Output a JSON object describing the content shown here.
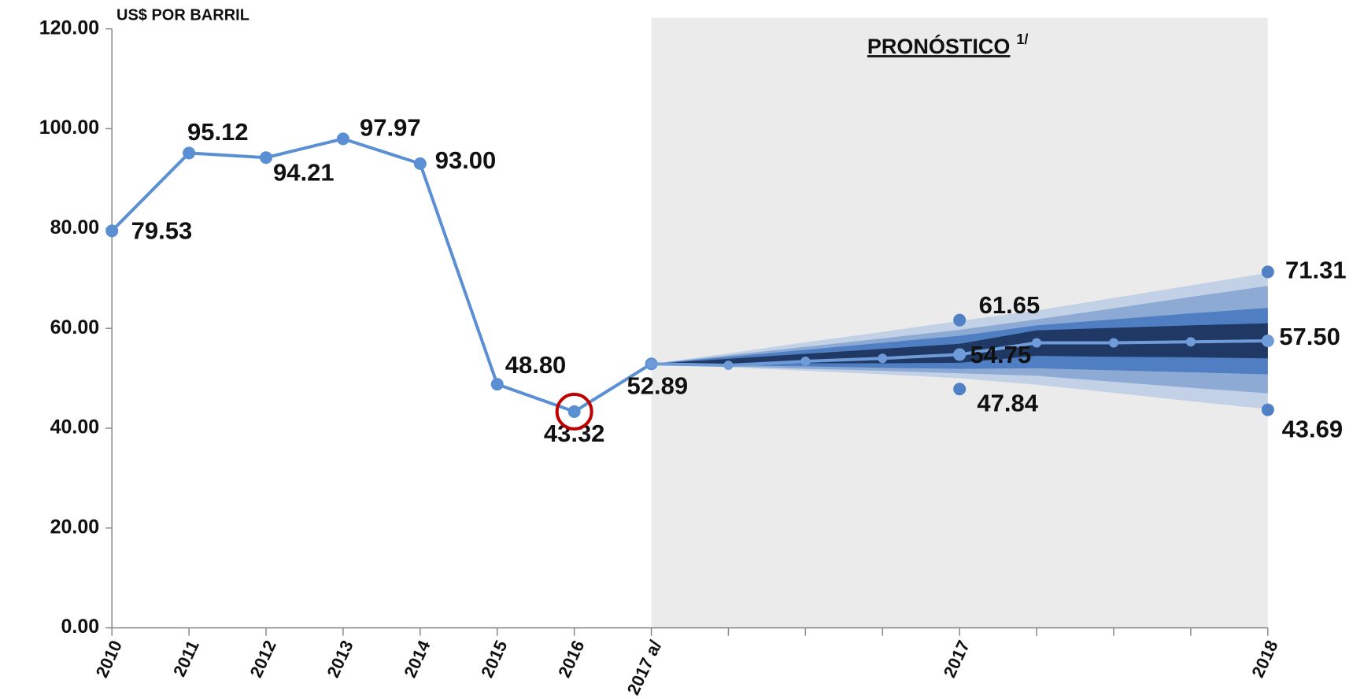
{
  "chart_data": {
    "type": "line",
    "y_axis_label": "US$ POR BARRIL",
    "annotation": {
      "text": "PRONÓSTICO",
      "note": "1/"
    },
    "highlight": {
      "category": "2016",
      "color": "#c00000"
    },
    "shade_color": "#ebebeb",
    "categories": [
      "2010",
      "2011",
      "2012",
      "2013",
      "2014",
      "2015",
      "2016",
      "2017 a/",
      null,
      null,
      null,
      "2017",
      null,
      null,
      null,
      "2018"
    ],
    "ylim": [
      0,
      120
    ],
    "yticks": [
      {
        "value": 0,
        "label": "0.00"
      },
      {
        "value": 20,
        "label": "20.00"
      },
      {
        "value": 40,
        "label": "40.00"
      },
      {
        "value": 60,
        "label": "60.00"
      },
      {
        "value": 80,
        "label": "80.00"
      },
      {
        "value": 100,
        "label": "100.00"
      },
      {
        "value": 120,
        "label": "120.00"
      }
    ],
    "bands": [
      {
        "color": "#c3d1e6",
        "upper": [
          null,
          null,
          null,
          null,
          null,
          null,
          null,
          52.89,
          55.0,
          57.2,
          59.3,
          61.5,
          63.6,
          66.1,
          68.6,
          71.1
        ],
        "lower": [
          null,
          null,
          null,
          null,
          null,
          null,
          null,
          52.89,
          52.2,
          51.5,
          50.8,
          50.0,
          48.7,
          47.1,
          45.4,
          43.8
        ]
      },
      {
        "color": "#8daad4",
        "upper": [
          null,
          null,
          null,
          null,
          null,
          null,
          null,
          52.89,
          54.6,
          56.3,
          58.0,
          59.7,
          61.8,
          64.0,
          66.3,
          68.5
        ],
        "lower": [
          null,
          null,
          null,
          null,
          null,
          null,
          null,
          52.89,
          52.4,
          51.9,
          51.5,
          51.0,
          50.5,
          49.3,
          48.1,
          47.0
        ]
      },
      {
        "color": "#4f7ec2",
        "upper": [
          null,
          null,
          null,
          null,
          null,
          null,
          null,
          52.89,
          54.3,
          55.7,
          57.1,
          58.5,
          60.6,
          61.8,
          63.0,
          64.1
        ],
        "lower": [
          null,
          null,
          null,
          null,
          null,
          null,
          null,
          52.89,
          52.6,
          52.4,
          52.1,
          51.9,
          52.0,
          51.6,
          51.2,
          50.8
        ]
      },
      {
        "color": "#203864",
        "upper": [
          null,
          null,
          null,
          null,
          null,
          null,
          null,
          52.89,
          53.9,
          54.9,
          55.9,
          56.9,
          59.6,
          60.1,
          60.6,
          61.0
        ],
        "lower": [
          null,
          null,
          null,
          null,
          null,
          null,
          null,
          52.89,
          52.9,
          53.0,
          53.0,
          53.1,
          54.5,
          54.3,
          54.2,
          54.0
        ]
      }
    ],
    "series": [
      {
        "color": "#5b8fd4",
        "line": true,
        "values": [
          79.53,
          95.12,
          94.21,
          97.97,
          93.0,
          48.8,
          43.32,
          52.89,
          null,
          null,
          null,
          null,
          null,
          null,
          null,
          null
        ],
        "value_labels": [
          "79.53",
          "95.12",
          "94.21",
          "97.97",
          "93.00",
          "48.80",
          "43.32",
          "52.89",
          null,
          null,
          null,
          null,
          null,
          null,
          null,
          null
        ]
      },
      {
        "color": "#6f9cd8",
        "line": true,
        "values": [
          null,
          null,
          null,
          null,
          null,
          null,
          null,
          52.89,
          52.6,
          53.4,
          54.0,
          54.75,
          57.1,
          57.1,
          57.3,
          57.5
        ],
        "value_labels": [
          null,
          null,
          null,
          null,
          null,
          null,
          null,
          null,
          null,
          null,
          null,
          "54.75",
          null,
          null,
          null,
          "57.50"
        ]
      },
      {
        "color": "#4f81c4",
        "line": false,
        "values": [
          null,
          null,
          null,
          null,
          null,
          null,
          null,
          null,
          null,
          null,
          null,
          61.65,
          null,
          null,
          null,
          71.31
        ],
        "value_labels": [
          null,
          null,
          null,
          null,
          null,
          null,
          null,
          null,
          null,
          null,
          null,
          "61.65",
          null,
          null,
          null,
          "71.31"
        ]
      },
      {
        "color": "#4f81c4",
        "line": false,
        "values": [
          null,
          null,
          null,
          null,
          null,
          null,
          null,
          null,
          null,
          null,
          null,
          47.84,
          null,
          null,
          null,
          43.69
        ],
        "value_labels": [
          null,
          null,
          null,
          null,
          null,
          null,
          null,
          null,
          null,
          null,
          null,
          "47.84",
          null,
          null,
          null,
          "43.69"
        ]
      }
    ]
  }
}
